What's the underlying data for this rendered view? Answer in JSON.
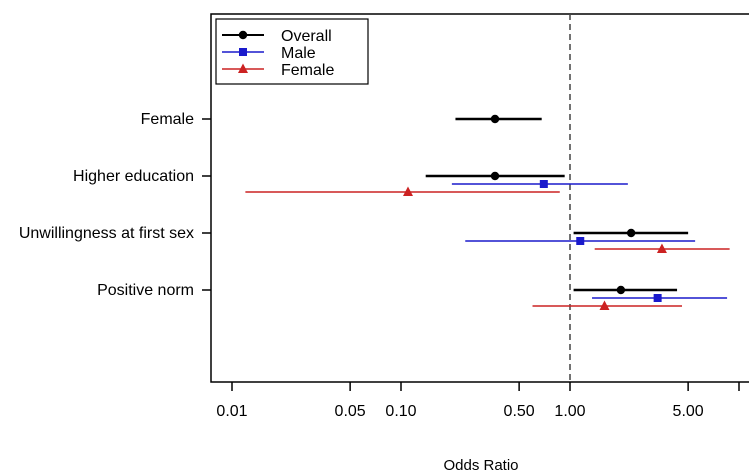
{
  "chart_data": {
    "type": "forest",
    "xlabel": "Odds Ratio",
    "x_scale": "log",
    "xlim": [
      0.008,
      9.0
    ],
    "x_ticks": [
      0.01,
      0.05,
      0.1,
      0.5,
      1.0,
      5.0
    ],
    "x_tick_labels": [
      "0.01",
      "0.05",
      "0.10",
      "0.50",
      "1.00",
      "5.00"
    ],
    "reference_line": 1.0,
    "categories": [
      "Female",
      "Higher education",
      "Unwillingness at first sex",
      "Positive norm"
    ],
    "legend_position": "top-left",
    "series": [
      {
        "name": "Overall",
        "color": "#000000",
        "marker": "circle",
        "points": [
          {
            "category": "Female",
            "or": 0.36,
            "lo": 0.21,
            "hi": 0.68
          },
          {
            "category": "Higher education",
            "or": 0.36,
            "lo": 0.14,
            "hi": 0.93
          },
          {
            "category": "Unwillingness at first sex",
            "or": 2.3,
            "lo": 1.05,
            "hi": 5.0
          },
          {
            "category": "Positive norm",
            "or": 2.0,
            "lo": 1.05,
            "hi": 4.3
          }
        ]
      },
      {
        "name": "Male",
        "color": "#1a1acc",
        "marker": "square",
        "points": [
          {
            "category": "Higher education",
            "or": 0.7,
            "lo": 0.2,
            "hi": 2.2
          },
          {
            "category": "Unwillingness at first sex",
            "or": 1.15,
            "lo": 0.24,
            "hi": 5.5
          },
          {
            "category": "Positive norm",
            "or": 3.3,
            "lo": 1.35,
            "hi": 8.5
          }
        ]
      },
      {
        "name": "Female",
        "color": "#cc2222",
        "marker": "triangle",
        "points": [
          {
            "category": "Higher education",
            "or": 0.11,
            "lo": 0.012,
            "hi": 0.87
          },
          {
            "category": "Unwillingness at first sex",
            "or": 3.5,
            "lo": 1.4,
            "hi": 8.8
          },
          {
            "category": "Positive norm",
            "or": 1.6,
            "lo": 0.6,
            "hi": 4.6
          }
        ]
      }
    ]
  }
}
